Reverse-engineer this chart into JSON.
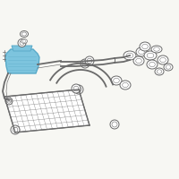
{
  "bg_color": "#f7f7f3",
  "line_color": "#6a6a6a",
  "highlight_color": "#7dc4de",
  "highlight_edge": "#5aaac8",
  "white": "#ffffff",
  "lw_main": 0.7,
  "lw_thin": 0.45,
  "lw_thick": 1.0,
  "lw_hose": 1.3
}
